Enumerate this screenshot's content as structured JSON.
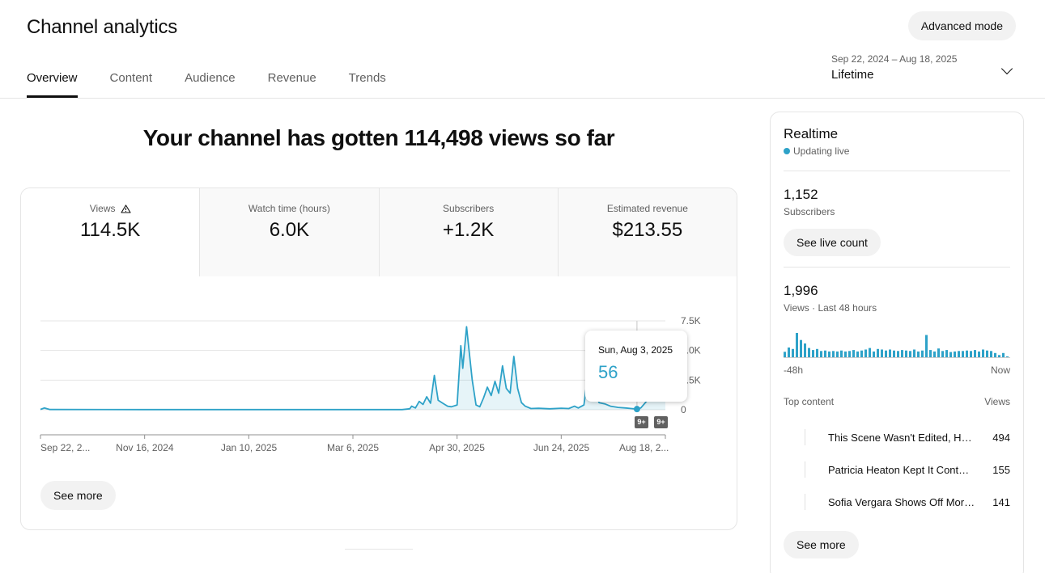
{
  "header": {
    "title": "Channel analytics",
    "advanced_button": "Advanced mode",
    "tabs": [
      {
        "label": "Overview",
        "active": true
      },
      {
        "label": "Content",
        "active": false
      },
      {
        "label": "Audience",
        "active": false
      },
      {
        "label": "Revenue",
        "active": false
      },
      {
        "label": "Trends",
        "active": false
      }
    ],
    "date_range": "Sep 22, 2024 – Aug 18, 2025",
    "date_label": "Lifetime"
  },
  "headline": "Your channel has gotten 114,498 views so far",
  "metrics": [
    {
      "label": "Views",
      "value": "114.5K",
      "warning_icon": "warning-triangle-icon",
      "active": true
    },
    {
      "label": "Watch time (hours)",
      "value": "6.0K",
      "active": false
    },
    {
      "label": "Subscribers",
      "value": "+1.2K",
      "active": false
    },
    {
      "label": "Estimated revenue",
      "value": "$213.55",
      "active": false
    }
  ],
  "chart_data": {
    "type": "area",
    "x_tick_labels": [
      "Sep 22, 2...",
      "Nov 16, 2024",
      "Jan 10, 2025",
      "Mar 6, 2025",
      "Apr 30, 2025",
      "Jun 24, 2025",
      "Aug 18, 2..."
    ],
    "y_tick_labels": [
      "0",
      "2.5K",
      "5.0K",
      "7.5K"
    ],
    "ylim": [
      0,
      7500
    ],
    "x_start": "2024-09-22",
    "x_end": "2025-08-18",
    "series_color": "#2ea2c8",
    "points": [
      [
        "2024-09-22",
        30
      ],
      [
        "2024-09-24",
        150
      ],
      [
        "2024-09-27",
        20
      ],
      [
        "2024-11-16",
        15
      ],
      [
        "2025-01-10",
        15
      ],
      [
        "2025-03-06",
        15
      ],
      [
        "2025-04-01",
        15
      ],
      [
        "2025-04-05",
        80
      ],
      [
        "2025-04-06",
        300
      ],
      [
        "2025-04-08",
        150
      ],
      [
        "2025-04-10",
        700
      ],
      [
        "2025-04-12",
        450
      ],
      [
        "2025-04-14",
        1100
      ],
      [
        "2025-04-16",
        550
      ],
      [
        "2025-04-18",
        2900
      ],
      [
        "2025-04-20",
        800
      ],
      [
        "2025-04-23",
        500
      ],
      [
        "2025-04-25",
        300
      ],
      [
        "2025-04-27",
        250
      ],
      [
        "2025-04-30",
        400
      ],
      [
        "2025-05-02",
        5400
      ],
      [
        "2025-05-03",
        3500
      ],
      [
        "2025-05-05",
        7000
      ],
      [
        "2025-05-06",
        5500
      ],
      [
        "2025-05-08",
        2500
      ],
      [
        "2025-05-10",
        400
      ],
      [
        "2025-05-12",
        250
      ],
      [
        "2025-05-14",
        1000
      ],
      [
        "2025-05-16",
        1900
      ],
      [
        "2025-05-18",
        1200
      ],
      [
        "2025-05-20",
        2400
      ],
      [
        "2025-05-22",
        1400
      ],
      [
        "2025-05-24",
        3700
      ],
      [
        "2025-05-26",
        1800
      ],
      [
        "2025-05-28",
        1400
      ],
      [
        "2025-05-30",
        4500
      ],
      [
        "2025-06-01",
        1800
      ],
      [
        "2025-06-03",
        600
      ],
      [
        "2025-06-05",
        300
      ],
      [
        "2025-06-08",
        100
      ],
      [
        "2025-06-12",
        120
      ],
      [
        "2025-06-18",
        80
      ],
      [
        "2025-06-24",
        130
      ],
      [
        "2025-06-28",
        100
      ],
      [
        "2025-07-01",
        300
      ],
      [
        "2025-07-03",
        150
      ],
      [
        "2025-07-06",
        400
      ],
      [
        "2025-07-08",
        2900
      ],
      [
        "2025-07-10",
        1000
      ],
      [
        "2025-07-12",
        1400
      ],
      [
        "2025-07-14",
        600
      ],
      [
        "2025-07-17",
        500
      ],
      [
        "2025-07-20",
        300
      ],
      [
        "2025-07-24",
        200
      ],
      [
        "2025-07-28",
        150
      ],
      [
        "2025-07-31",
        100
      ],
      [
        "2025-08-03",
        56
      ],
      [
        "2025-08-05",
        150
      ],
      [
        "2025-08-08",
        700
      ],
      [
        "2025-08-11",
        1100
      ],
      [
        "2025-08-14",
        1200
      ],
      [
        "2025-08-18",
        900
      ]
    ],
    "tooltip": {
      "date": "Sun, Aug 3, 2025",
      "value": "56",
      "x": "2025-08-03"
    },
    "badges": [
      "9+",
      "9+"
    ]
  },
  "main_see_more": "See more",
  "realtime": {
    "title": "Realtime",
    "live_label": "Updating live",
    "subscribers_value": "1,152",
    "subscribers_label": "Subscribers",
    "live_count_button": "See live count",
    "views_value": "1,996",
    "views_label": "Views · Last 48 hours",
    "axis_start": "-48h",
    "axis_end": "Now",
    "bars": [
      0.25,
      0.42,
      0.36,
      1.0,
      0.72,
      0.58,
      0.4,
      0.32,
      0.36,
      0.28,
      0.3,
      0.26,
      0.28,
      0.26,
      0.3,
      0.26,
      0.28,
      0.32,
      0.26,
      0.3,
      0.34,
      0.4,
      0.26,
      0.36,
      0.34,
      0.3,
      0.34,
      0.3,
      0.28,
      0.32,
      0.3,
      0.28,
      0.34,
      0.26,
      0.3,
      0.92,
      0.32,
      0.26,
      0.38,
      0.28,
      0.32,
      0.24,
      0.26,
      0.28,
      0.28,
      0.3,
      0.28,
      0.32,
      0.26,
      0.34,
      0.3,
      0.28,
      0.2,
      0.12,
      0.2,
      0.06
    ],
    "top_content_label": "Top content",
    "top_views_label": "Views",
    "top_content": [
      {
        "title": "This Scene Wasn't Edited, Here's What Really Happened",
        "views": "494"
      },
      {
        "title": "Patricia Heaton Kept It Contained",
        "views": "155"
      },
      {
        "title": "Sofia Vergara Shows Off More Than Expected",
        "views": "141"
      }
    ],
    "see_more": "See more"
  }
}
